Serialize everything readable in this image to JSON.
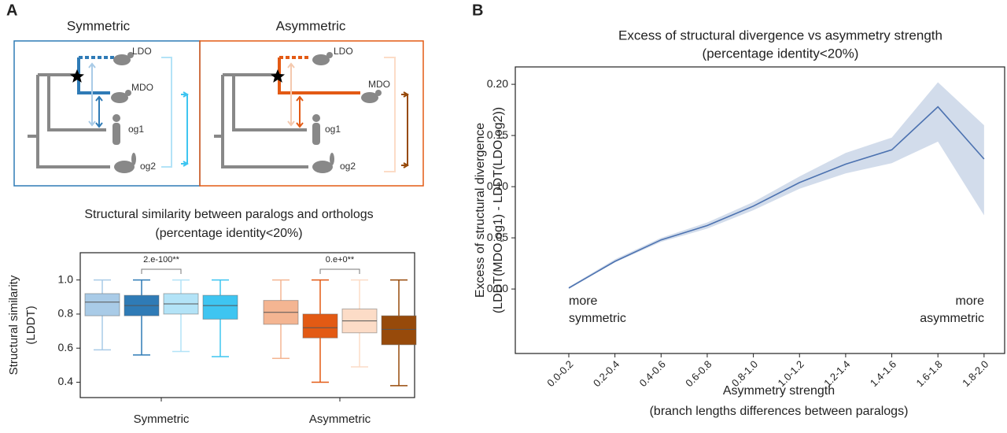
{
  "panel_labels": [
    "A",
    "B"
  ],
  "diagrams": [
    {
      "title": "Symmetric",
      "nodes": [
        "LDO",
        "MDO",
        "og1",
        "og2"
      ]
    },
    {
      "title": "Asymmetric",
      "nodes": [
        "LDO",
        "MDO",
        "og1",
        "og2"
      ]
    }
  ],
  "chart_data": [
    {
      "type": "box",
      "title": [
        "Structural similarity between paralogs and orthologs",
        "(percentage identity<20%)"
      ],
      "y_label": [
        "Structural similarity",
        "(LDDT)"
      ],
      "categories": [
        "Symmetric",
        "Asymmetric"
      ],
      "groups": [
        {
          "annotation": "2.e-100**",
          "boxes": [
            {
              "color": "#a9cbe7",
              "min": 0.59,
              "q1": 0.79,
              "median": 0.87,
              "q3": 0.92,
              "max": 1.0
            },
            {
              "color": "#2f7bb6",
              "min": 0.56,
              "q1": 0.79,
              "median": 0.85,
              "q3": 0.91,
              "max": 1.0
            },
            {
              "color": "#b3e3f7",
              "min": 0.58,
              "q1": 0.8,
              "median": 0.86,
              "q3": 0.92,
              "max": 1.0
            },
            {
              "color": "#3ec5f1",
              "min": 0.55,
              "q1": 0.77,
              "median": 0.85,
              "q3": 0.91,
              "max": 1.0
            }
          ]
        },
        {
          "annotation": "0.e+0**",
          "boxes": [
            {
              "color": "#f4b592",
              "min": 0.54,
              "q1": 0.74,
              "median": 0.81,
              "q3": 0.88,
              "max": 1.0
            },
            {
              "color": "#e35a14",
              "min": 0.4,
              "q1": 0.66,
              "median": 0.72,
              "q3": 0.8,
              "max": 1.0
            },
            {
              "color": "#fcdcc7",
              "min": 0.49,
              "q1": 0.69,
              "median": 0.76,
              "q3": 0.83,
              "max": 1.0
            },
            {
              "color": "#974a0a",
              "min": 0.38,
              "q1": 0.62,
              "median": 0.71,
              "q3": 0.79,
              "max": 1.0
            }
          ]
        }
      ],
      "ylim": [
        0.31,
        1.16
      ],
      "yticks": [
        0.4,
        0.6,
        0.8,
        {
          "value": 1,
          "label": "1.0"
        }
      ]
    },
    {
      "type": "line",
      "title": [
        "Excess of structural divergence vs asymmetry strength",
        "(percentage identity<20%)"
      ],
      "x_label": [
        "Asymmetry strength",
        "(branch lengths differences between paralogs)"
      ],
      "y_label": [
        "Excess of structural divergence",
        "(LDDT(MDO,og1) - LDDT(LDO,og2))"
      ],
      "categories": [
        "0.0-0.2",
        "0.2-0.4",
        "0.4-0.6",
        "0.6-0.8",
        "0.8-1.0",
        "1.0-1.2",
        "1.2-1.4",
        "1.4-1.6",
        "1.6-1.8",
        "1.8-2.0"
      ],
      "series": [
        {
          "color": "#4c72b0",
          "values": [
            0.001,
            0.027,
            0.048,
            0.062,
            0.081,
            0.104,
            0.122,
            0.136,
            0.178,
            0.127
          ],
          "lower": [
            0.0,
            0.026,
            0.046,
            0.059,
            0.077,
            0.098,
            0.113,
            0.123,
            0.144,
            0.072
          ],
          "upper": [
            0.002,
            0.029,
            0.05,
            0.065,
            0.085,
            0.11,
            0.133,
            0.148,
            0.202,
            0.16
          ]
        }
      ],
      "annotations": {
        "left": [
          "more",
          "symmetric"
        ],
        "right": [
          "more",
          "asymmetric"
        ]
      },
      "ylim": [
        -0.063,
        0.217
      ],
      "yticks": [
        {
          "value": 0,
          "label": "0.00"
        },
        {
          "value": 0.05,
          "label": "0.05"
        },
        {
          "value": 0.1,
          "label": "0.10"
        },
        {
          "value": 0.15,
          "label": "0.15"
        },
        {
          "value": 0.2,
          "label": "0.20"
        }
      ]
    }
  ]
}
